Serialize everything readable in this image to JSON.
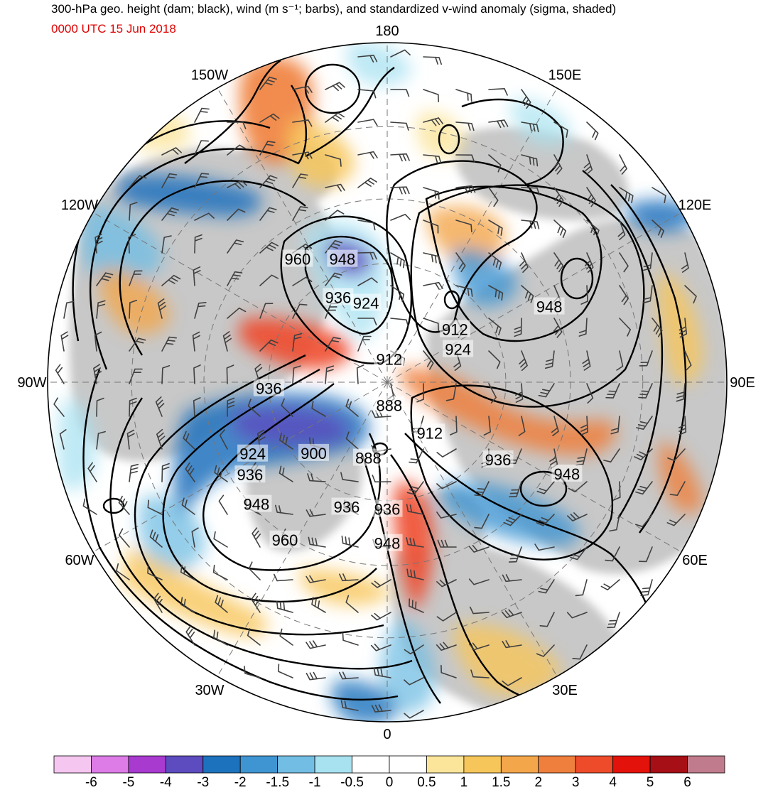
{
  "header": {
    "title": "300-hPa geo. height (dam; black), wind (m s⁻¹; barbs), and standardized v-wind anomaly (sigma, shaded)",
    "datetime": "0000 UTC 15 Jun 2018",
    "title_color": "#000000",
    "datetime_color": "#e00000"
  },
  "map": {
    "projection": "north polar stereographic",
    "longitude_labels": [
      {
        "name": "lon-label-180",
        "text": "180",
        "lon": 180
      },
      {
        "name": "lon-label-150e",
        "text": "150E",
        "lon": 150
      },
      {
        "name": "lon-label-120e",
        "text": "120E",
        "lon": 120
      },
      {
        "name": "lon-label-90e",
        "text": "90E",
        "lon": 90
      },
      {
        "name": "lon-label-60e",
        "text": "60E",
        "lon": 60
      },
      {
        "name": "lon-label-30e",
        "text": "30E",
        "lon": 30
      },
      {
        "name": "lon-label-0",
        "text": "0",
        "lon": 0
      },
      {
        "name": "lon-label-30w",
        "text": "30W",
        "lon": -30
      },
      {
        "name": "lon-label-60w",
        "text": "60W",
        "lon": -60
      },
      {
        "name": "lon-label-90w",
        "text": "90W",
        "lon": -90
      },
      {
        "name": "lon-label-120w",
        "text": "120W",
        "lon": -120
      },
      {
        "name": "lon-label-150w",
        "text": "150W",
        "lon": -150
      }
    ],
    "height_contour_labels": [
      {
        "text": "948",
        "lat": 57,
        "lon": -160
      },
      {
        "text": "960",
        "lat": 52,
        "lon": -144
      },
      {
        "text": "936",
        "lat": 65,
        "lon": -150
      },
      {
        "text": "924",
        "lat": 69,
        "lon": -165
      },
      {
        "text": "912",
        "lat": 84,
        "lon": 175
      },
      {
        "text": "912",
        "lat": 68,
        "lon": 128
      },
      {
        "text": "948",
        "lat": 46,
        "lon": 115
      },
      {
        "text": "924",
        "lat": 70,
        "lon": 115
      },
      {
        "text": "936",
        "lat": 60,
        "lon": -87
      },
      {
        "text": "924",
        "lat": 52,
        "lon": -62
      },
      {
        "text": "900",
        "lat": 64,
        "lon": -46
      },
      {
        "text": "936",
        "lat": 49,
        "lon": -56
      },
      {
        "text": "948",
        "lat": 46,
        "lon": -47
      },
      {
        "text": "960",
        "lat": 44,
        "lon": -33
      },
      {
        "text": "888",
        "lat": 84,
        "lon": 5
      },
      {
        "text": "888",
        "lat": 70,
        "lon": -14
      },
      {
        "text": "912",
        "lat": 73,
        "lon": 40
      },
      {
        "text": "936",
        "lat": 56,
        "lon": 55
      },
      {
        "text": "948",
        "lat": 41,
        "lon": 63
      },
      {
        "text": "936",
        "lat": 57,
        "lon": -18
      },
      {
        "text": "936",
        "lat": 58,
        "lon": 0
      },
      {
        "text": "948",
        "lat": 50,
        "lon": 0
      }
    ]
  },
  "colorbar": {
    "tick_labels": [
      "-6",
      "-5",
      "-4",
      "-3",
      "-2",
      "-1.5",
      "-1",
      "-0.5",
      "0",
      "0.5",
      "1",
      "1.5",
      "2",
      "3",
      "4",
      "5",
      "6"
    ],
    "colors": [
      "#f5c6f0",
      "#dd7ce6",
      "#a83ad0",
      "#5c4cbf",
      "#1d72bd",
      "#3f95d2",
      "#72bde3",
      "#a8e2f1",
      "#ffffff",
      "#ffffff",
      "#fbe59a",
      "#f7c65a",
      "#f4a64a",
      "#ef7f3c",
      "#ee4b2b",
      "#e3120b",
      "#a50f15",
      "#c07c8c"
    ]
  },
  "style": {
    "land_color": "#c8c8c8",
    "ocean_color": "#ffffff",
    "contour_color": "#000000",
    "barb_color": "#404040"
  }
}
